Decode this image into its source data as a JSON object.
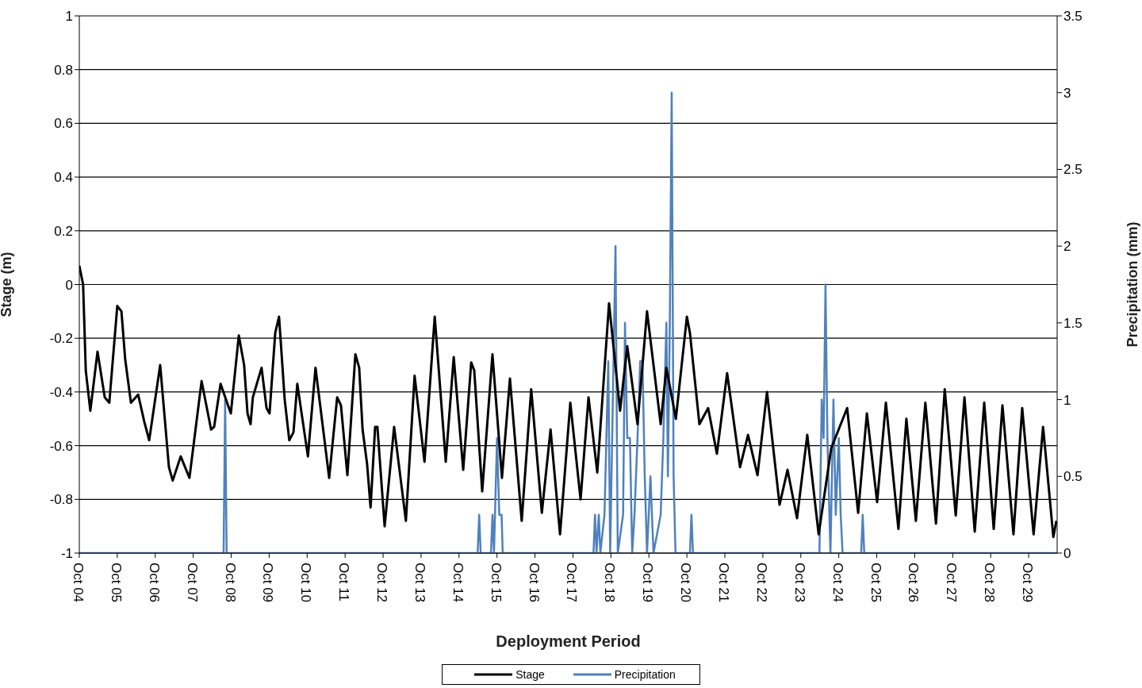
{
  "chart_data": {
    "type": "line",
    "xlabel": "Deployment Period",
    "ylabel": "Stage (m)",
    "y2label": "Precipitation (mm)",
    "xlim": [
      "--10-04",
      "--10-29T18:00"
    ],
    "xticks": [
      {
        "value": "--10-04",
        "label": "Oct 04"
      },
      {
        "value": "--10-05",
        "label": "Oct 05"
      },
      {
        "value": "--10-06",
        "label": "Oct 06"
      },
      {
        "value": "--10-07",
        "label": "Oct 07"
      },
      {
        "value": "--10-08",
        "label": "Oct 08"
      },
      {
        "value": "--10-09",
        "label": "Oct 09"
      },
      {
        "value": "--10-10",
        "label": "Oct 10"
      },
      {
        "value": "--10-11",
        "label": "Oct 11"
      },
      {
        "value": "--10-12",
        "label": "Oct 12"
      },
      {
        "value": "--10-13",
        "label": "Oct 13"
      },
      {
        "value": "--10-14",
        "label": "Oct 14"
      },
      {
        "value": "--10-15",
        "label": "Oct 15"
      },
      {
        "value": "--10-16",
        "label": "Oct 16"
      },
      {
        "value": "--10-17",
        "label": "Oct 17"
      },
      {
        "value": "--10-18",
        "label": "Oct 18"
      },
      {
        "value": "--10-19",
        "label": "Oct 19"
      },
      {
        "value": "--10-20",
        "label": "Oct 20"
      },
      {
        "value": "--10-21",
        "label": "Oct 21"
      },
      {
        "value": "--10-22",
        "label": "Oct 22"
      },
      {
        "value": "--10-23",
        "label": "Oct 23"
      },
      {
        "value": "--10-24",
        "label": "Oct 24"
      },
      {
        "value": "--10-25",
        "label": "Oct 25"
      },
      {
        "value": "--10-26",
        "label": "Oct 26"
      },
      {
        "value": "--10-27",
        "label": "Oct 27"
      },
      {
        "value": "--10-28",
        "label": "Oct 28"
      },
      {
        "value": "--10-29",
        "label": "Oct 29"
      }
    ],
    "ylim": [
      -1,
      1
    ],
    "yticks": [
      -1,
      -0.8,
      -0.6,
      -0.4,
      -0.2,
      0,
      0.2,
      0.4,
      0.6,
      0.8,
      1
    ],
    "y2lim": [
      0,
      3.5
    ],
    "y2ticks": [
      0,
      0.5,
      1,
      1.5,
      2,
      2.5,
      3,
      3.5
    ],
    "grid": "y",
    "legend": "bottom",
    "marker": "none",
    "line_style": "solid",
    "series": [
      {
        "name": "Stage",
        "axis": "y",
        "color": "#000000",
        "x": [
          "--10-04T00:00",
          "--10-04T02:24",
          "--10-04T04:05",
          "--10-04T06:58",
          "--10-04T11:31",
          "--10-04T16:05",
          "--10-04T18:58",
          "--10-05T00:00",
          "--10-05T02:38",
          "--10-05T05:02",
          "--10-05T08:38",
          "--10-05T13:12",
          "--10-05T17:02",
          "--10-05T20:10",
          "--10-06T03:07",
          "--10-06T08:38",
          "--10-06T11:02",
          "--10-06T16:05",
          "--10-06T21:36",
          "--10-07T05:17",
          "--10-07T11:17",
          "--10-07T13:12",
          "--10-07T17:17",
          "--10-07T23:46",
          "--10-08T04:48",
          "--10-08T08:10",
          "--10-08T10:19",
          "--10-08T12:14",
          "--10-08T13:41",
          "--10-08T19:12",
          "--10-08T22:19",
          "--10-09T00:14",
          "--10-09T03:50",
          "--10-09T06:14",
          "--10-09T09:50",
          "--10-09T12:43",
          "--10-09T15:22",
          "--10-09T17:46",
          "--10-10T00:29",
          "--10-10T05:17",
          "--10-10T13:55",
          "--10-10T18:58",
          "--10-10T21:22",
          "--10-11T01:26",
          "--10-11T06:29",
          "--10-11T08:53",
          "--10-11T11:02",
          "--10-11T13:55",
          "--10-11T16:05",
          "--10-11T18:58",
          "--10-11T20:24",
          "--10-12T00:58",
          "--10-12T06:58",
          "--10-12T14:24",
          "--10-12T19:55",
          "--10-13T02:10",
          "--10-13T08:38",
          "--10-13T15:36",
          "--10-13T20:38",
          "--10-14T02:38",
          "--10-14T07:41",
          "--10-14T09:36",
          "--10-14T14:38",
          "--10-14T21:07",
          "--10-15T03:07",
          "--10-15T08:10",
          "--10-15T15:36",
          "--10-15T21:36",
          "--10-16T04:19",
          "--10-16T09:50",
          "--10-16T15:50",
          "--10-16T22:19",
          "--10-17T04:48",
          "--10-17T09:50",
          "--10-17T15:22",
          "--10-17T22:48",
          "--10-18T05:46",
          "--10-18T10:19",
          "--10-18T16:48",
          "--10-18T22:48",
          "--10-19T07:26",
          "--10-19T11:02",
          "--10-19T17:02",
          "--10-20T00:00",
          "--10-20T01:55",
          "--10-20T07:55",
          "--10-20T13:26",
          "--10-20T18:58",
          "--10-21T01:26",
          "--10-21T09:36",
          "--10-21T14:38",
          "--10-21T20:38",
          "--10-22T02:38",
          "--10-22T10:34",
          "--10-22T15:36",
          "--10-22T21:36",
          "--10-23T04:05",
          "--10-23T11:17",
          "--10-23T19:12",
          "--10-24T05:17",
          "--10-24T12:14",
          "--10-24T17:46",
          "--10-25T00:14",
          "--10-25T05:46",
          "--10-25T13:41",
          "--10-25T18:43",
          "--10-26T00:43",
          "--10-26T06:43",
          "--10-26T13:26",
          "--10-26T18:58",
          "--10-27T01:55",
          "--10-27T07:26",
          "--10-27T13:55",
          "--10-27T19:55",
          "--10-28T01:55",
          "--10-28T07:26",
          "--10-28T14:24",
          "--10-28T19:55",
          "--10-29T03:07",
          "--10-29T09:07",
          "--10-29T15:36",
          "--10-29T17:31"
        ],
        "values": [
          0.07,
          0.0,
          -0.32,
          -0.47,
          -0.25,
          -0.42,
          -0.44,
          -0.08,
          -0.1,
          -0.28,
          -0.44,
          -0.41,
          -0.51,
          -0.58,
          -0.3,
          -0.68,
          -0.73,
          -0.64,
          -0.72,
          -0.36,
          -0.54,
          -0.53,
          -0.37,
          -0.48,
          -0.19,
          -0.3,
          -0.48,
          -0.52,
          -0.42,
          -0.31,
          -0.46,
          -0.48,
          -0.18,
          -0.12,
          -0.43,
          -0.58,
          -0.55,
          -0.37,
          -0.64,
          -0.31,
          -0.72,
          -0.42,
          -0.45,
          -0.71,
          -0.26,
          -0.31,
          -0.54,
          -0.67,
          -0.83,
          -0.53,
          -0.53,
          -0.9,
          -0.53,
          -0.88,
          -0.34,
          -0.66,
          -0.12,
          -0.66,
          -0.27,
          -0.69,
          -0.29,
          -0.32,
          -0.77,
          -0.26,
          -0.72,
          -0.35,
          -0.88,
          -0.39,
          -0.85,
          -0.54,
          -0.93,
          -0.44,
          -0.8,
          -0.42,
          -0.7,
          -0.07,
          -0.47,
          -0.23,
          -0.52,
          -0.1,
          -0.52,
          -0.31,
          -0.5,
          -0.12,
          -0.18,
          -0.52,
          -0.46,
          -0.63,
          -0.33,
          -0.68,
          -0.56,
          -0.71,
          -0.4,
          -0.82,
          -0.69,
          -0.87,
          -0.56,
          -0.93,
          -0.61,
          -0.46,
          -0.85,
          -0.48,
          -0.81,
          -0.44,
          -0.91,
          -0.5,
          -0.88,
          -0.44,
          -0.89,
          -0.39,
          -0.86,
          -0.42,
          -0.92,
          -0.44,
          -0.91,
          -0.45,
          -0.93,
          -0.46,
          -0.93,
          -0.53,
          -0.94,
          -0.88
        ]
      },
      {
        "name": "Precipitation",
        "axis": "y2",
        "color": "#4f81bd",
        "x": [
          "--10-04T00:00",
          "--10-07T19:12",
          "--10-07T20:10",
          "--10-07T21:07",
          "--10-14T11:46",
          "--10-14T12:43",
          "--10-14T13:41",
          "--10-14T20:10",
          "--10-14T21:07",
          "--10-14T22:05",
          "--10-15T00:00",
          "--10-15T01:26",
          "--10-15T02:53",
          "--10-15T03:36",
          "--10-17T12:58",
          "--10-17T13:55",
          "--10-17T14:53",
          "--10-17T16:19",
          "--10-17T17:17",
          "--10-17T19:55",
          "--10-17T22:19",
          "--10-17T23:31",
          "--10-18T02:53",
          "--10-18T04:19",
          "--10-18T07:41",
          "--10-18T08:53",
          "--10-18T10:19",
          "--10-18T12:00",
          "--10-18T13:26",
          "--10-18T14:53",
          "--10-18T15:50",
          "--10-18T16:48",
          "--10-18T18:29",
          "--10-18T19:55",
          "--10-18T21:22",
          "--10-18T22:48",
          "--10-19T00:58",
          "--10-19T02:53",
          "--10-19T07:26",
          "--10-19T09:07",
          "--10-19T11:02",
          "--10-19T12:00",
          "--10-19T13:12",
          "--10-19T14:24",
          "--10-19T15:36",
          "--10-19T16:48",
          "--10-20T01:55",
          "--10-20T02:53",
          "--10-20T03:50",
          "--10-23T11:46",
          "--10-23T13:12",
          "--10-23T14:24",
          "--10-23T15:36",
          "--10-23T16:48",
          "--10-23T18:43",
          "--10-23T20:38",
          "--10-23T22:05",
          "--10-24T00:00",
          "--10-24T01:12",
          "--10-24T02:24",
          "--10-24T14:10",
          "--10-24T15:07",
          "--10-24T16:05",
          "--10-29T18:00"
        ],
        "values": [
          0,
          0,
          1.0,
          0,
          0,
          0.25,
          0,
          0,
          0.25,
          0,
          0.75,
          0.25,
          0.25,
          0,
          0,
          0.25,
          0,
          0.25,
          0,
          0.25,
          1.25,
          0,
          2.0,
          0,
          0.25,
          1.5,
          0.75,
          0.75,
          0,
          0.25,
          0.5,
          0.75,
          1.25,
          1.25,
          0.5,
          0,
          0.5,
          0,
          0.25,
          0.75,
          1.5,
          0.5,
          1.5,
          3.0,
          0.5,
          0,
          0,
          0.25,
          0,
          0,
          1.0,
          0.75,
          1.75,
          0.75,
          0,
          1.0,
          0.25,
          0.75,
          0.25,
          0,
          0,
          0.25,
          0,
          0
        ]
      }
    ]
  }
}
